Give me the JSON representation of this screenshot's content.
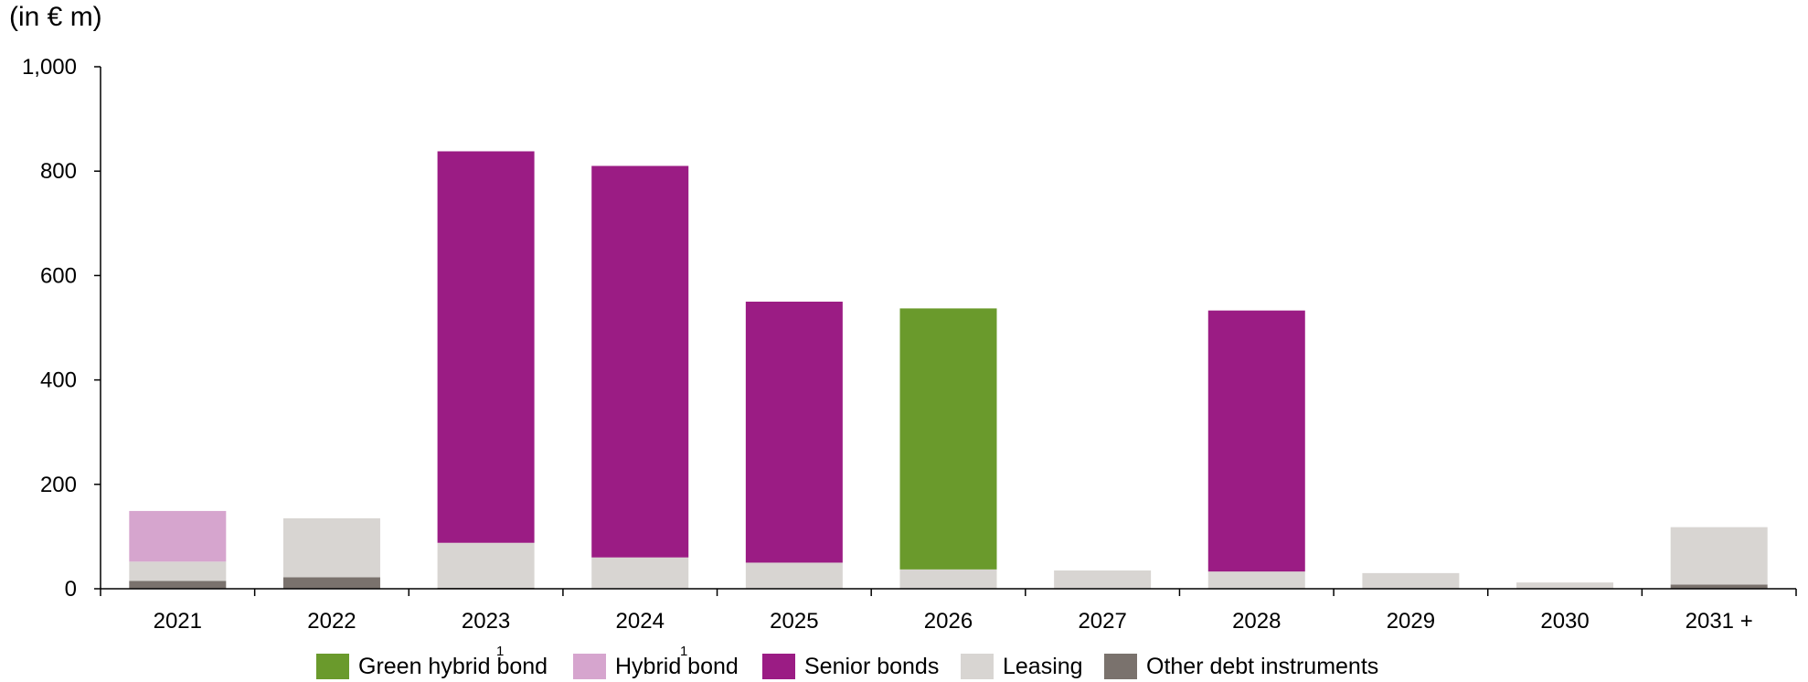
{
  "unit_label": "(in € m)",
  "colors": {
    "green_hybrid_bond": "#6a9a2c",
    "hybrid_bond": "#d6a5ce",
    "senior_bonds": "#9b1c84",
    "leasing": "#d8d5d2",
    "other_debt_instruments": "#7a726d",
    "axis": "#000000"
  },
  "chart_data": {
    "type": "bar",
    "stacked": true,
    "categories": [
      "2021",
      "2022",
      "2023",
      "2024",
      "2025",
      "2026",
      "2027",
      "2028",
      "2029",
      "2030",
      "2031 +"
    ],
    "series": [
      {
        "key": "other_debt_instruments",
        "name": "Other debt instruments",
        "values": [
          15,
          22,
          2,
          0,
          0,
          0,
          0,
          0,
          0,
          0,
          8
        ]
      },
      {
        "key": "leasing",
        "name": "Leasing",
        "values": [
          37,
          113,
          86,
          60,
          50,
          37,
          35,
          33,
          30,
          12,
          110
        ]
      },
      {
        "key": "senior_bonds",
        "name": "Senior bonds",
        "values": [
          0,
          0,
          750,
          750,
          500,
          0,
          0,
          500,
          0,
          0,
          0
        ]
      },
      {
        "key": "hybrid_bond",
        "name": "Hybrid bond",
        "values": [
          97,
          0,
          0,
          0,
          0,
          0,
          0,
          0,
          0,
          0,
          0
        ]
      },
      {
        "key": "green_hybrid_bond",
        "name": "Green hybrid bond",
        "values": [
          0,
          0,
          0,
          0,
          0,
          500,
          0,
          0,
          0,
          0,
          0
        ]
      }
    ],
    "ylim": [
      0,
      1000
    ],
    "yticks": [
      "0",
      "200",
      "400",
      "600",
      "800",
      "1,000"
    ],
    "ytick_values": [
      0,
      200,
      400,
      600,
      800,
      1000
    ],
    "legend_position": "bottom",
    "legend_order": [
      "green_hybrid_bond",
      "hybrid_bond",
      "senior_bonds",
      "leasing",
      "other_debt_instruments"
    ],
    "legend_footnotes": {
      "green_hybrid_bond": "1",
      "hybrid_bond": "1"
    },
    "grid": false
  }
}
